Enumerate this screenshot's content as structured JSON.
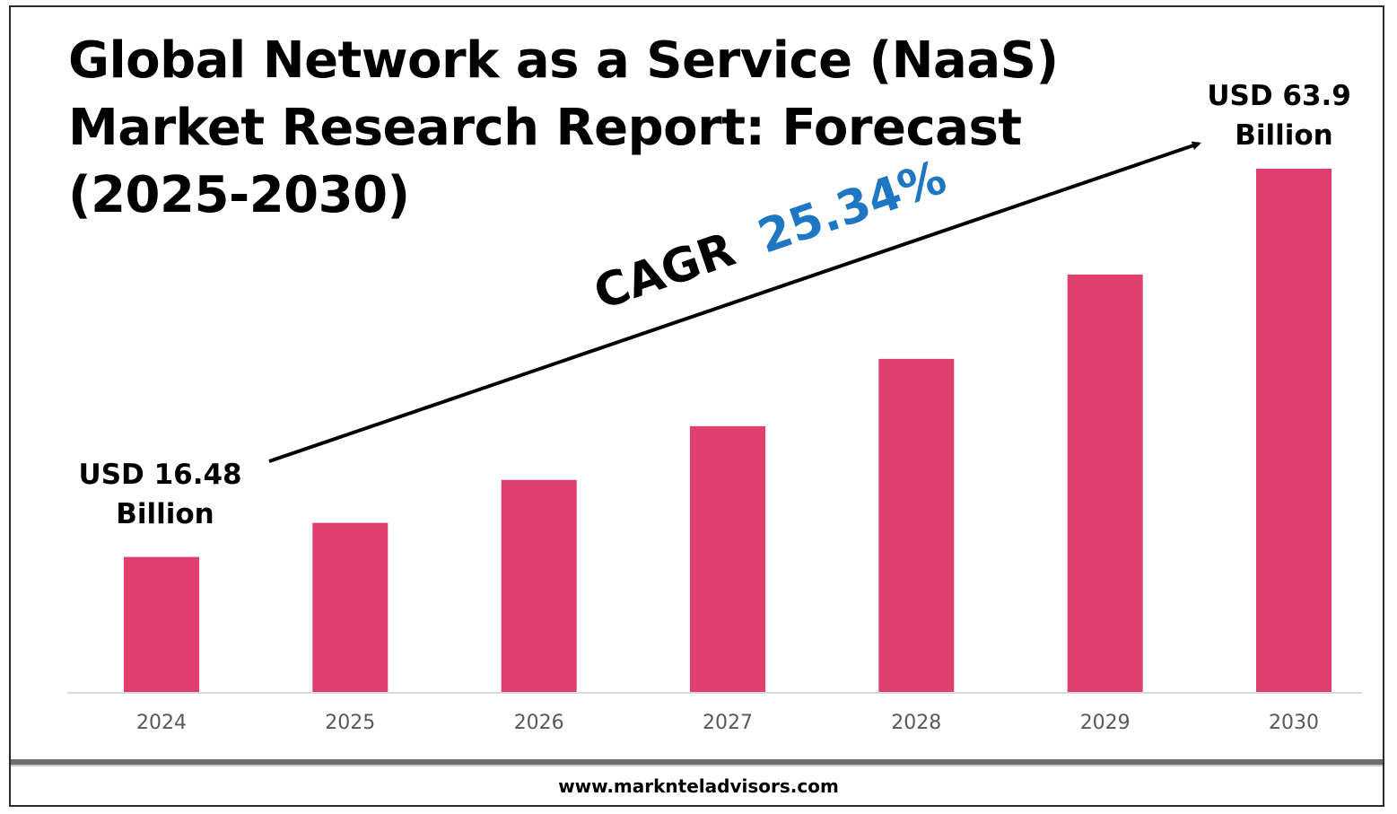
{
  "title_lines": [
    "Global Network as a Service (NaaS)",
    "Market Research Report: Forecast",
    "(2025-2030)"
  ],
  "footer": {
    "url": "www.marknteladvisors.com"
  },
  "cagr": {
    "label": "CAGR",
    "value": "25.34%"
  },
  "annotations": {
    "start": [
      "USD 16.48",
      "Billion"
    ],
    "end": [
      "USD 63.9",
      "Billion"
    ]
  },
  "colors": {
    "bar": "#E03F6E",
    "cagr_value": "#1F77C4",
    "axis": "#d9d9d9",
    "tick_text": "#595959"
  },
  "chart_data": {
    "type": "bar",
    "categories": [
      "2024",
      "2025",
      "2026",
      "2027",
      "2028",
      "2029",
      "2030"
    ],
    "values": [
      16.48,
      20.65,
      25.89,
      32.45,
      40.67,
      50.98,
      63.9
    ],
    "title": "Global Network as a Service (NaaS) Market Research Report: Forecast (2025-2030)",
    "xlabel": "",
    "ylabel": "",
    "ylim": [
      0,
      63.9
    ],
    "grid": false,
    "legend": "none",
    "unit": "USD Billion"
  }
}
